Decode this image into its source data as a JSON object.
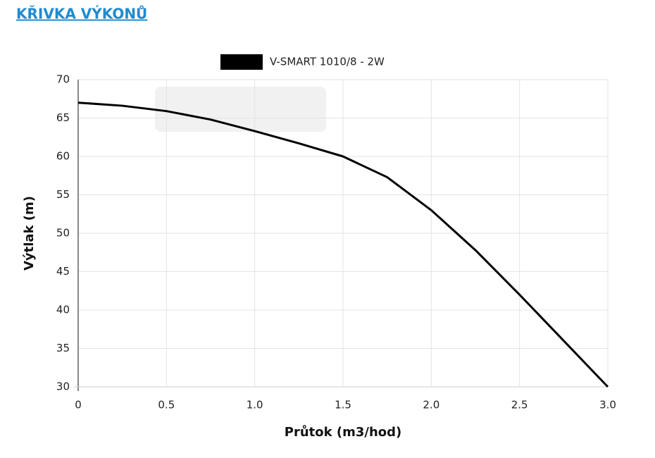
{
  "header": {
    "title": "KŘIVKA VÝKONŮ"
  },
  "chart_data": {
    "type": "line",
    "x_label": "Průtok (m3/hod)",
    "y_label": "Výtlak (m)",
    "x": [
      0,
      0.25,
      0.5,
      0.75,
      1,
      1.25,
      1.5,
      1.75,
      2,
      2.25,
      2.5,
      2.75,
      3
    ],
    "series": [
      {
        "name": "V-SMART 1010/8 - 2W",
        "color": "#000000",
        "values": [
          67,
          66.6,
          65.9,
          64.8,
          63.3,
          61.7,
          60,
          57.3,
          53,
          47.8,
          42,
          36,
          30
        ]
      }
    ],
    "xlim": [
      0,
      3
    ],
    "xticks": [
      0,
      0.5,
      {
        "value": 1,
        "label": "1.0"
      },
      1.5,
      {
        "value": 2,
        "label": "2.0"
      },
      2.5,
      {
        "value": 3,
        "label": "3.0"
      }
    ],
    "ylim": [
      30,
      70
    ],
    "yticks": [
      30,
      35,
      40,
      45,
      50,
      55,
      60,
      65,
      70
    ],
    "grid": true,
    "legend": "top"
  }
}
